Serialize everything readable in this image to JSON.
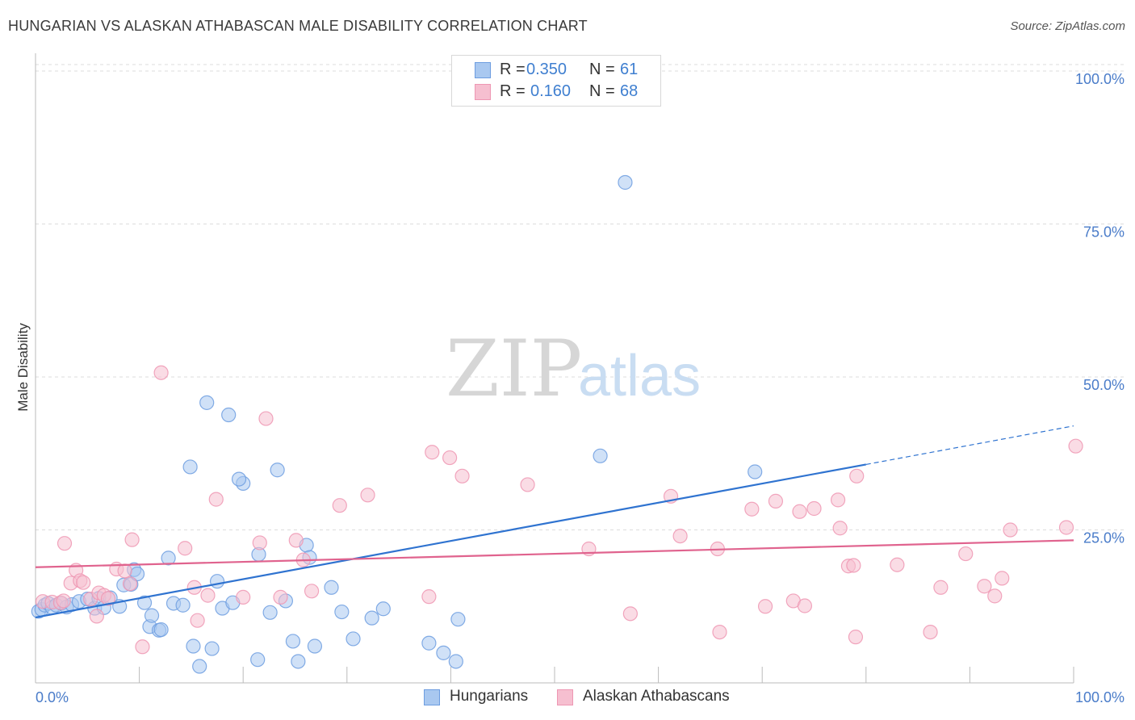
{
  "title": "HUNGARIAN VS ALASKAN ATHABASCAN MALE DISABILITY CORRELATION CHART",
  "source": "Source: ZipAtlas.com",
  "watermark": {
    "zip": "ZIP",
    "atlas": "atlas"
  },
  "legend": {
    "rows": [
      {
        "r_label": "R =",
        "r_value": "0.350",
        "n_label": "N =",
        "n_value": "61"
      },
      {
        "r_label": "R =",
        "r_value": "0.160",
        "n_label": "N =",
        "n_value": "68"
      }
    ]
  },
  "bottom_legend": {
    "series1": "Hungarians",
    "series2": "Alaskan Athabascans"
  },
  "colors": {
    "hungarians_fill": "#a9c8f0",
    "hungarians_stroke": "#6d9de0",
    "hungarians_line": "#2f73d0",
    "alaskan_fill": "#f6bfd0",
    "alaskan_stroke": "#ee97b3",
    "alaskan_line": "#e0638e",
    "tick_text": "#4a7cc9",
    "grid": "#dddddd"
  },
  "chart_data": {
    "type": "scatter",
    "title": "HUNGARIAN VS ALASKAN ATHABASCAN MALE DISABILITY CORRELATION CHART",
    "xlabel": "",
    "ylabel": "Male Disability",
    "xlim": [
      0,
      100
    ],
    "ylim": [
      0,
      100
    ],
    "x_tick_labels": [
      "0.0%",
      "100.0%"
    ],
    "y_ticks": [
      25,
      50,
      75,
      100
    ],
    "y_tick_labels": [
      "25.0%",
      "50.0%",
      "75.0%",
      "100.0%"
    ],
    "grid": "horizontal dashed",
    "legend_position": "top-center",
    "series": [
      {
        "name": "Hungarians",
        "r": 0.35,
        "n": 61,
        "trend": {
          "x0": 0,
          "y0": 10.7,
          "x1": 80,
          "y1": 35.7,
          "dash_to_x": 100,
          "dash_to_y": 42
        },
        "points": [
          [
            0.3,
            11.7
          ],
          [
            0.6,
            12.0
          ],
          [
            0.9,
            12.7
          ],
          [
            1.2,
            13.0
          ],
          [
            1.6,
            12.3
          ],
          [
            2.0,
            12.7
          ],
          [
            2.5,
            13.0
          ],
          [
            3.0,
            12.4
          ],
          [
            3.5,
            12.8
          ],
          [
            4.2,
            13.3
          ],
          [
            5.0,
            13.7
          ],
          [
            5.7,
            12.2
          ],
          [
            6.1,
            13.8
          ],
          [
            6.6,
            12.3
          ],
          [
            7.2,
            13.9
          ],
          [
            8.1,
            12.5
          ],
          [
            8.5,
            16.0
          ],
          [
            9.2,
            16.1
          ],
          [
            9.5,
            18.5
          ],
          [
            9.8,
            17.8
          ],
          [
            10.5,
            13.1
          ],
          [
            11.0,
            9.2
          ],
          [
            11.2,
            11.0
          ],
          [
            11.9,
            8.6
          ],
          [
            12.1,
            8.7
          ],
          [
            12.8,
            20.4
          ],
          [
            13.3,
            13.0
          ],
          [
            14.2,
            12.7
          ],
          [
            14.9,
            35.3
          ],
          [
            15.2,
            6.0
          ],
          [
            15.8,
            2.7
          ],
          [
            16.5,
            45.8
          ],
          [
            17.0,
            5.6
          ],
          [
            17.5,
            16.6
          ],
          [
            18.0,
            12.2
          ],
          [
            18.6,
            43.8
          ],
          [
            19.0,
            13.1
          ],
          [
            20.0,
            32.6
          ],
          [
            19.6,
            33.3
          ],
          [
            21.4,
            3.8
          ],
          [
            21.5,
            21.0
          ],
          [
            22.6,
            11.5
          ],
          [
            23.3,
            34.8
          ],
          [
            24.1,
            13.4
          ],
          [
            24.8,
            6.8
          ],
          [
            25.3,
            3.5
          ],
          [
            26.1,
            22.5
          ],
          [
            26.4,
            20.5
          ],
          [
            26.9,
            6.0
          ],
          [
            28.5,
            15.6
          ],
          [
            29.5,
            11.6
          ],
          [
            30.6,
            7.2
          ],
          [
            32.4,
            10.6
          ],
          [
            33.5,
            12.1
          ],
          [
            37.9,
            6.5
          ],
          [
            39.3,
            4.9
          ],
          [
            40.5,
            3.5
          ],
          [
            40.7,
            10.4
          ],
          [
            56.8,
            81.8
          ],
          [
            54.4,
            37.1
          ],
          [
            69.3,
            34.5
          ]
        ]
      },
      {
        "name": "Alaskan Athabascans",
        "r": 0.16,
        "n": 68,
        "trend": {
          "x0": 0,
          "y0": 18.9,
          "x1": 100,
          "y1": 23.3
        },
        "points": [
          [
            0.7,
            13.3
          ],
          [
            1.6,
            13.2
          ],
          [
            2.4,
            13.1
          ],
          [
            2.7,
            13.4
          ],
          [
            2.8,
            22.8
          ],
          [
            3.4,
            16.3
          ],
          [
            3.9,
            18.4
          ],
          [
            4.3,
            16.7
          ],
          [
            4.6,
            16.4
          ],
          [
            5.3,
            13.7
          ],
          [
            5.9,
            10.9
          ],
          [
            6.1,
            14.7
          ],
          [
            6.6,
            14.3
          ],
          [
            7.0,
            13.8
          ],
          [
            7.8,
            18.6
          ],
          [
            8.6,
            18.3
          ],
          [
            9.1,
            16.2
          ],
          [
            9.3,
            23.4
          ],
          [
            10.3,
            5.9
          ],
          [
            12.1,
            50.7
          ],
          [
            14.4,
            22.0
          ],
          [
            15.3,
            15.6
          ],
          [
            15.6,
            10.2
          ],
          [
            16.6,
            14.3
          ],
          [
            17.4,
            30.0
          ],
          [
            20.0,
            14.0
          ],
          [
            21.6,
            22.9
          ],
          [
            22.2,
            43.2
          ],
          [
            23.6,
            14.0
          ],
          [
            25.1,
            23.3
          ],
          [
            25.8,
            20.1
          ],
          [
            26.6,
            15.0
          ],
          [
            29.3,
            29.0
          ],
          [
            32.0,
            30.7
          ],
          [
            37.9,
            14.1
          ],
          [
            38.2,
            37.7
          ],
          [
            39.9,
            36.8
          ],
          [
            41.1,
            33.8
          ],
          [
            47.4,
            32.4
          ],
          [
            53.3,
            21.9
          ],
          [
            57.3,
            11.3
          ],
          [
            61.2,
            30.5
          ],
          [
            62.1,
            24.0
          ],
          [
            65.7,
            21.9
          ],
          [
            65.9,
            8.3
          ],
          [
            69.0,
            28.4
          ],
          [
            70.3,
            12.5
          ],
          [
            71.3,
            29.7
          ],
          [
            73.0,
            13.4
          ],
          [
            73.6,
            28.0
          ],
          [
            74.1,
            12.6
          ],
          [
            75.0,
            28.5
          ],
          [
            77.3,
            29.9
          ],
          [
            77.5,
            25.3
          ],
          [
            78.3,
            19.1
          ],
          [
            78.8,
            19.2
          ],
          [
            79.1,
            33.8
          ],
          [
            79.0,
            7.5
          ],
          [
            83.0,
            19.3
          ],
          [
            86.2,
            8.3
          ],
          [
            87.2,
            15.6
          ],
          [
            89.6,
            21.1
          ],
          [
            91.4,
            15.8
          ],
          [
            92.4,
            14.2
          ],
          [
            93.1,
            17.1
          ],
          [
            93.9,
            25.0
          ],
          [
            99.3,
            25.4
          ],
          [
            100.2,
            38.7
          ]
        ]
      }
    ]
  }
}
